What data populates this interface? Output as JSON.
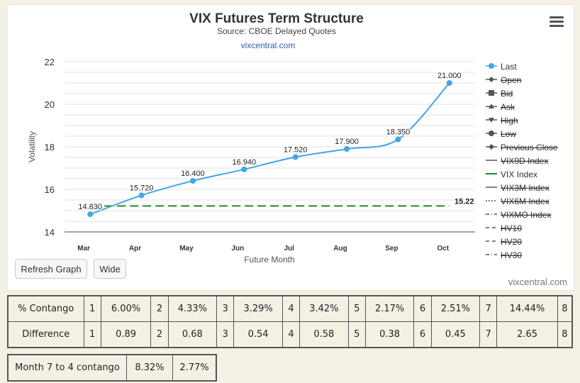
{
  "chart_data": {
    "type": "line",
    "title": "VIX Futures Term Structure",
    "subtitle": "Source: CBOE Delayed Quotes",
    "link_text": "vixcentral.com",
    "credit": "vixcentral.com",
    "xlabel": "Future Month",
    "ylabel": "Volatility",
    "ylim": [
      14,
      22
    ],
    "yticks": [
      14,
      16,
      18,
      20,
      22
    ],
    "categories": [
      "Mar",
      "Apr",
      "May",
      "Jun",
      "Jul",
      "Aug",
      "Sep",
      "Oct"
    ],
    "series": [
      {
        "name": "Last",
        "values": [
          14.83,
          15.72,
          16.4,
          16.94,
          17.52,
          17.9,
          18.35,
          21.0
        ],
        "labels": [
          "14.830",
          "15.720",
          "16.400",
          "16.940",
          "17.520",
          "17.900",
          "18.350",
          "21.000"
        ],
        "color": "#41a6e8"
      },
      {
        "name": "VIX Index",
        "value": 15.22,
        "label": "15.22",
        "color": "#1f8a1f",
        "style": "dashed"
      }
    ],
    "legend_position": "right",
    "legend": [
      {
        "label": "Last",
        "marker": "circle",
        "line": "solid",
        "color": "#41a6e8",
        "hidden": false
      },
      {
        "label": "Open",
        "marker": "diamond",
        "line": "solid",
        "color": "#555555",
        "hidden": true
      },
      {
        "label": "Bid",
        "marker": "square",
        "line": "solid",
        "color": "#555555",
        "hidden": true
      },
      {
        "label": "Ask",
        "marker": "triangle",
        "line": "solid",
        "color": "#555555",
        "hidden": true
      },
      {
        "label": "High",
        "marker": "triangle-down",
        "line": "solid",
        "color": "#555555",
        "hidden": true
      },
      {
        "label": "Low",
        "marker": "circle",
        "line": "solid",
        "color": "#555555",
        "hidden": true
      },
      {
        "label": "Previous Close",
        "marker": "diamond",
        "line": "solid",
        "color": "#555555",
        "hidden": true
      },
      {
        "label": "VIX9D Index",
        "marker": "none",
        "line": "solid",
        "color": "#555555",
        "hidden": true
      },
      {
        "label": "VIX Index",
        "marker": "none",
        "line": "solid",
        "color": "#1f8a1f",
        "hidden": false
      },
      {
        "label": "VIX3M Index",
        "marker": "none",
        "line": "solid",
        "color": "#555555",
        "hidden": true
      },
      {
        "label": "VIX6M Index",
        "marker": "none",
        "line": "dotted",
        "color": "#555555",
        "hidden": true
      },
      {
        "label": "VIXMO Index",
        "marker": "none",
        "line": "dashdot",
        "color": "#555555",
        "hidden": true
      },
      {
        "label": "HV10",
        "marker": "none",
        "line": "dashed",
        "color": "#555555",
        "hidden": true
      },
      {
        "label": "HV20",
        "marker": "none",
        "line": "dashed",
        "color": "#555555",
        "hidden": true
      },
      {
        "label": "HV30",
        "marker": "none",
        "line": "dashdot",
        "color": "#555555",
        "hidden": true
      }
    ],
    "grid": true
  },
  "buttons": {
    "refresh": "Refresh Graph",
    "wide": "Wide"
  },
  "stats_table": {
    "rows": [
      {
        "label": "% Contango",
        "cells": [
          "1",
          "6.00%",
          "2",
          "4.33%",
          "3",
          "3.29%",
          "4",
          "3.42%",
          "5",
          "2.17%",
          "6",
          "2.51%",
          "7",
          "14.44%",
          "8"
        ]
      },
      {
        "label": "Difference",
        "cells": [
          "1",
          "0.89",
          "2",
          "0.68",
          "3",
          "0.54",
          "4",
          "0.58",
          "5",
          "0.38",
          "6",
          "0.45",
          "7",
          "2.65",
          "8"
        ]
      }
    ]
  },
  "month74": {
    "label": "Month 7 to 4 contango",
    "values": [
      "8.32%",
      "2.77%"
    ]
  }
}
